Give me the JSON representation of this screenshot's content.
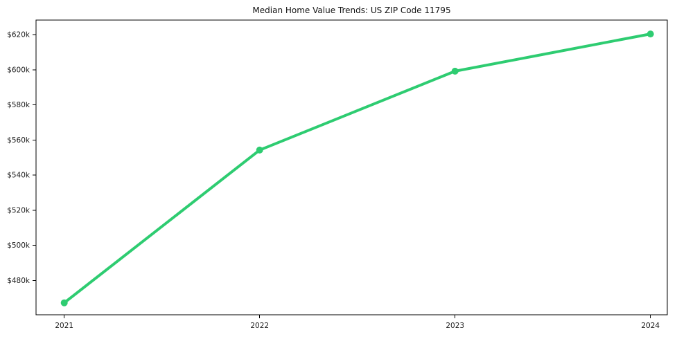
{
  "chart_data": {
    "type": "line",
    "title": "Median Home Value Trends: US ZIP Code 11795",
    "x": [
      2021,
      2022,
      2023,
      2024
    ],
    "x_tick_labels": [
      "2021",
      "2022",
      "2023",
      "2024"
    ],
    "series": [
      {
        "name": "median-home-value",
        "values_usd": [
          467300,
          554300,
          599200,
          620400
        ],
        "color": "#2ecc71",
        "marker": "circle",
        "line_width": 4,
        "marker_radius": 5
      }
    ],
    "y_ticks_usd": [
      480000,
      500000,
      520000,
      540000,
      560000,
      580000,
      600000,
      620000
    ],
    "y_tick_labels": [
      "$480k",
      "$500k",
      "$520k",
      "$540k",
      "$560k",
      "$580k",
      "$600k",
      "$620k"
    ],
    "xlim": [
      2020.86,
      2024.09
    ],
    "ylim_usd": [
      460500,
      628300
    ],
    "grid": false,
    "legend": "none",
    "axis_color": "#000000",
    "text_color": "#1a1a1a",
    "background": "#ffffff"
  }
}
